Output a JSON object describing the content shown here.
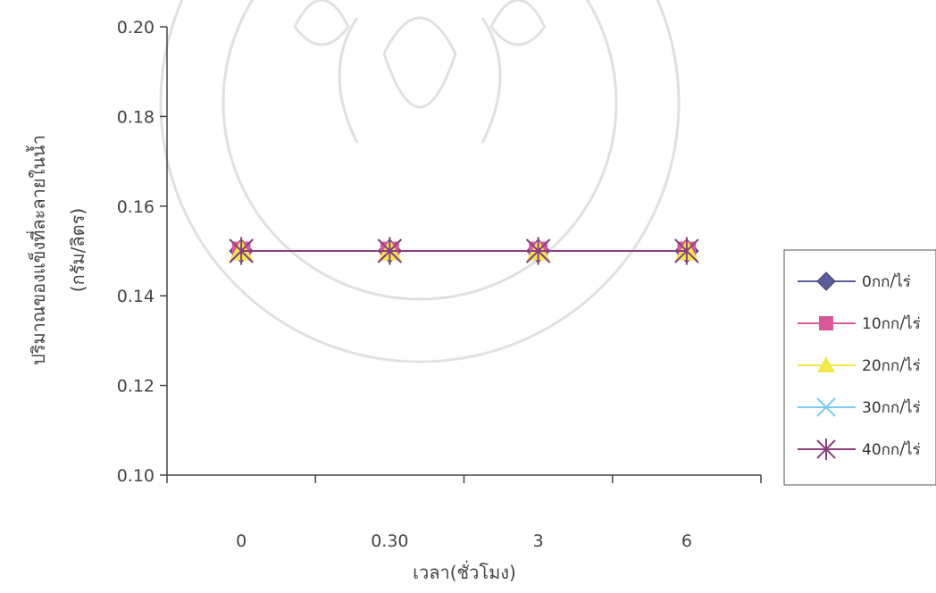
{
  "chart_data": {
    "type": "line",
    "categories": [
      "0",
      "0.30",
      "3",
      "6"
    ],
    "ylim": [
      0.1,
      0.2
    ],
    "yticks": [
      "0.10",
      "0.12",
      "0.14",
      "0.16",
      "0.18",
      "0.20"
    ],
    "xlabel": "เวลา(ชั่วโมง)",
    "ylabel": "ปริมาณของแข็งที่ละลายในน้ำ",
    "ylabel_unit": "(กรัม/ลิตร)",
    "legend_position": "right",
    "grid": false,
    "series": [
      {
        "name": "0กก/ไร่",
        "values": [
          0.15,
          0.15,
          0.15,
          0.15
        ],
        "color": "#5b5e9a",
        "marker": "diamond"
      },
      {
        "name": "10กก/ไร่",
        "values": [
          0.15,
          0.15,
          0.15,
          0.15
        ],
        "color": "#d9589a",
        "marker": "square"
      },
      {
        "name": "20กก/ไร่",
        "values": [
          0.15,
          0.15,
          0.15,
          0.15
        ],
        "color": "#f2e84a",
        "marker": "triangle"
      },
      {
        "name": "30กก/ไร่",
        "values": [
          0.15,
          0.15,
          0.15,
          0.15
        ],
        "color": "#7fc9ef",
        "marker": "x"
      },
      {
        "name": "40กก/ไร่",
        "values": [
          0.15,
          0.15,
          0.15,
          0.15
        ],
        "color": "#8a3f7c",
        "marker": "star"
      }
    ]
  }
}
